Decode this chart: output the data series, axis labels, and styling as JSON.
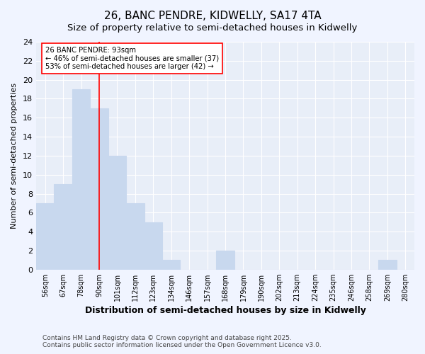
{
  "title1": "26, BANC PENDRE, KIDWELLY, SA17 4TA",
  "title2": "Size of property relative to semi-detached houses in Kidwelly",
  "xlabel": "Distribution of semi-detached houses by size in Kidwelly",
  "ylabel": "Number of semi-detached properties",
  "categories": [
    "56sqm",
    "67sqm",
    "78sqm",
    "90sqm",
    "101sqm",
    "112sqm",
    "123sqm",
    "134sqm",
    "146sqm",
    "157sqm",
    "168sqm",
    "179sqm",
    "190sqm",
    "202sqm",
    "213sqm",
    "224sqm",
    "235sqm",
    "246sqm",
    "258sqm",
    "269sqm",
    "280sqm"
  ],
  "values": [
    7,
    9,
    19,
    17,
    12,
    7,
    5,
    1,
    0,
    0,
    2,
    0,
    0,
    0,
    0,
    0,
    0,
    0,
    0,
    1,
    0
  ],
  "bar_color": "#c8d8ee",
  "bar_edge_color": "#c8d8ee",
  "vline_x": 3.5,
  "vline_label": "26 BANC PENDRE: 93sqm",
  "annotation_smaller": "← 46% of semi-detached houses are smaller (37)",
  "annotation_larger": "53% of semi-detached houses are larger (42) →",
  "ylim": [
    0,
    24
  ],
  "yticks": [
    0,
    2,
    4,
    6,
    8,
    10,
    12,
    14,
    16,
    18,
    20,
    22,
    24
  ],
  "footer1": "Contains HM Land Registry data © Crown copyright and database right 2025.",
  "footer2": "Contains public sector information licensed under the Open Government Licence v3.0.",
  "bg_color": "#f0f4ff",
  "plot_bg_color": "#e8eef8",
  "grid_color": "#ffffff",
  "title1_fontsize": 11,
  "title2_fontsize": 9.5
}
